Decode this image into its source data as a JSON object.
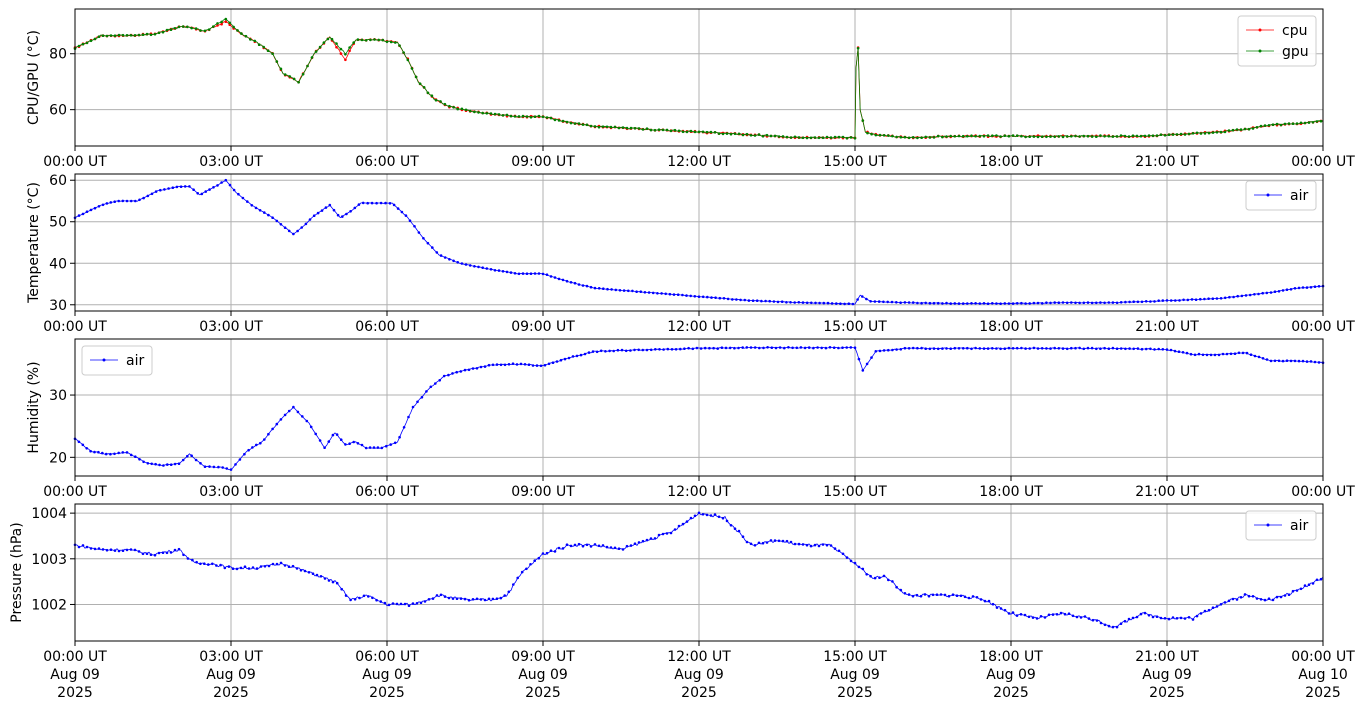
{
  "colors": {
    "cpu": "#ff0000",
    "gpu": "#008000",
    "air": "#0000ff",
    "grid": "#b0b0b0"
  },
  "chart_data": [
    {
      "type": "scatter",
      "ylabel": "CPU/GPU (°C)",
      "ylim": [
        47,
        96
      ],
      "yticks": [
        60,
        80
      ],
      "xlim": [
        0,
        24
      ],
      "xticks": [
        0,
        3,
        6,
        9,
        12,
        15,
        18,
        21,
        24
      ],
      "xticklabels": [
        "00:00 UT",
        "03:00 UT",
        "06:00 UT",
        "09:00 UT",
        "12:00 UT",
        "15:00 UT",
        "18:00 UT",
        "21:00 UT",
        "00:00 UT"
      ],
      "grid": true,
      "legend": "top-right",
      "series": [
        {
          "name": "cpu",
          "color": "#ff0000",
          "x": [
            0,
            0.5,
            1,
            1.5,
            2,
            2.2,
            2.5,
            2.9,
            3.2,
            3.5,
            3.8,
            4.0,
            4.3,
            4.6,
            4.9,
            5.2,
            5.4,
            5.8,
            6.2,
            6.4,
            6.6,
            6.9,
            7.2,
            7.6,
            8,
            8.5,
            9,
            9.5,
            10,
            10.5,
            11,
            11.5,
            12,
            12.5,
            13,
            13.5,
            14,
            14.5,
            15,
            15.02,
            15.06,
            15.1,
            15.2,
            15.4,
            16,
            17,
            18,
            19,
            20,
            20.5,
            21,
            21.5,
            22,
            22.5,
            23,
            23.5,
            24
          ],
          "y": [
            82,
            86.5,
            86.5,
            87,
            89.5,
            89.5,
            88,
            91.5,
            87,
            84,
            80,
            73,
            70,
            80,
            86,
            78,
            85,
            85,
            84,
            78,
            70,
            64,
            61,
            59.5,
            58.5,
            57.5,
            57.5,
            55.5,
            54,
            53.5,
            53,
            52.5,
            52,
            51.5,
            51,
            50.5,
            50,
            50,
            50,
            75,
            82,
            60,
            52,
            51,
            50,
            50.5,
            50.5,
            50.5,
            50.5,
            50.5,
            51,
            51.5,
            52,
            53,
            54.5,
            55,
            56
          ]
        },
        {
          "name": "gpu",
          "color": "#008000",
          "x": [
            0,
            0.5,
            1,
            1.5,
            2,
            2.2,
            2.5,
            2.9,
            3.2,
            3.5,
            3.8,
            4.0,
            4.3,
            4.6,
            4.9,
            5.2,
            5.4,
            5.8,
            6.2,
            6.4,
            6.6,
            6.9,
            7.2,
            7.6,
            8,
            8.5,
            9,
            9.5,
            10,
            10.5,
            11,
            11.5,
            12,
            12.5,
            13,
            13.5,
            14,
            14.5,
            15,
            15.02,
            15.06,
            15.1,
            15.2,
            15.4,
            16,
            17,
            18,
            19,
            20,
            20.5,
            21,
            21.5,
            22,
            22.5,
            23,
            23.5,
            24
          ],
          "y": [
            82,
            86.5,
            86.5,
            87,
            89.5,
            89.5,
            88,
            92.5,
            87,
            84,
            80,
            73,
            70,
            80,
            86,
            80,
            85,
            85,
            84,
            78,
            70,
            64,
            61,
            59.5,
            58.5,
            57.5,
            57.5,
            55.5,
            54,
            53.5,
            53,
            52.5,
            52,
            51.5,
            51,
            50.5,
            50,
            50,
            50,
            75,
            82,
            60,
            52,
            51,
            50,
            50.5,
            50.5,
            50.5,
            50.5,
            50.5,
            51,
            51.5,
            52,
            53,
            54.5,
            55,
            56
          ]
        }
      ]
    },
    {
      "type": "scatter",
      "ylabel": "Temperature (°C)",
      "ylim": [
        28.5,
        61.5
      ],
      "yticks": [
        30,
        40,
        50,
        60
      ],
      "xlim": [
        0,
        24
      ],
      "xticks": [
        0,
        3,
        6,
        9,
        12,
        15,
        18,
        21,
        24
      ],
      "xticklabels": [
        "00:00 UT",
        "03:00 UT",
        "06:00 UT",
        "09:00 UT",
        "12:00 UT",
        "15:00 UT",
        "18:00 UT",
        "21:00 UT",
        "00:00 UT"
      ],
      "grid": true,
      "legend": "top-right",
      "series": [
        {
          "name": "air",
          "color": "#0000ff",
          "x": [
            0,
            0.5,
            0.8,
            1.2,
            1.6,
            2.0,
            2.2,
            2.4,
            2.7,
            2.9,
            3.1,
            3.4,
            3.8,
            4.2,
            4.4,
            4.6,
            4.9,
            5.1,
            5.3,
            5.5,
            5.8,
            6.1,
            6.4,
            6.7,
            7.0,
            7.4,
            8,
            8.5,
            9,
            9.5,
            10,
            11,
            12,
            13,
            14,
            15,
            15.1,
            15.3,
            16,
            17,
            18,
            19,
            20,
            21,
            22,
            23,
            23.5,
            24
          ],
          "y": [
            51,
            54,
            55,
            55,
            57.5,
            58.5,
            58.5,
            56.5,
            58.5,
            60,
            57,
            54,
            51,
            47,
            49,
            51.5,
            54,
            51,
            52.5,
            54.5,
            54.5,
            54.5,
            51,
            46,
            42,
            40,
            38.5,
            37.5,
            37.5,
            35.5,
            34,
            33,
            32,
            31,
            30.5,
            30.2,
            32.3,
            30.8,
            30.5,
            30.3,
            30.3,
            30.5,
            30.5,
            31,
            31.5,
            33,
            34,
            34.5
          ]
        }
      ]
    },
    {
      "type": "scatter",
      "ylabel": "Humidity (%)",
      "ylim": [
        17,
        39
      ],
      "yticks": [
        20,
        30
      ],
      "xlim": [
        0,
        24
      ],
      "xticks": [
        0,
        3,
        6,
        9,
        12,
        15,
        18,
        21,
        24
      ],
      "xticklabels": [
        "00:00 UT",
        "03:00 UT",
        "06:00 UT",
        "09:00 UT",
        "12:00 UT",
        "15:00 UT",
        "18:00 UT",
        "21:00 UT",
        "00:00 UT"
      ],
      "grid": true,
      "legend": "top-left",
      "series": [
        {
          "name": "air",
          "color": "#0000ff",
          "x": [
            0,
            0.3,
            0.6,
            1.0,
            1.4,
            1.7,
            2.0,
            2.2,
            2.5,
            2.8,
            3.0,
            3.3,
            3.6,
            4.0,
            4.2,
            4.5,
            4.8,
            5.0,
            5.2,
            5.4,
            5.6,
            5.9,
            6.2,
            6.5,
            6.8,
            7.1,
            7.5,
            8,
            8.5,
            9,
            9.5,
            10,
            11,
            12,
            13,
            14,
            15,
            15.15,
            15.4,
            16,
            17,
            18,
            19,
            20,
            21,
            21.5,
            22,
            22.5,
            23,
            23.5,
            24
          ],
          "y": [
            23,
            21,
            20.5,
            20.8,
            19,
            18.7,
            19,
            20.5,
            18.5,
            18.4,
            18,
            21,
            22.5,
            26.5,
            28,
            25.5,
            21.5,
            24,
            22,
            22.5,
            21.5,
            21.5,
            22.5,
            28,
            31,
            33,
            34,
            34.8,
            35,
            34.7,
            36,
            37,
            37.3,
            37.5,
            37.6,
            37.6,
            37.6,
            34,
            37,
            37.5,
            37.5,
            37.5,
            37.5,
            37.5,
            37.3,
            36.5,
            36.5,
            36.8,
            35.5,
            35.5,
            35.2
          ]
        }
      ]
    },
    {
      "type": "scatter",
      "ylabel": "Pressure (hPa)",
      "ylim": [
        1001.2,
        1004.2
      ],
      "yticks": [
        1002,
        1003,
        1004
      ],
      "xlim": [
        0,
        24
      ],
      "xticks": [
        0,
        3,
        6,
        9,
        12,
        15,
        18,
        21,
        24
      ],
      "xticklabels": [
        "00:00 UT",
        "03:00 UT",
        "06:00 UT",
        "09:00 UT",
        "12:00 UT",
        "15:00 UT",
        "18:00 UT",
        "21:00 UT",
        "00:00 UT"
      ],
      "xticklabels2": [
        "Aug 09",
        "Aug 09",
        "Aug 09",
        "Aug 09",
        "Aug 09",
        "Aug 09",
        "Aug 09",
        "Aug 09",
        "Aug 10"
      ],
      "xticklabels3": [
        "2025",
        "2025",
        "2025",
        "2025",
        "2025",
        "2025",
        "2025",
        "2025",
        "2025"
      ],
      "grid": true,
      "legend": "top-right",
      "series": [
        {
          "name": "air",
          "color": "#0000ff",
          "x": [
            0,
            0.5,
            1,
            1.5,
            2,
            2.3,
            2.6,
            3,
            3.5,
            4,
            4.5,
            5,
            5.3,
            5.6,
            6,
            6.5,
            7,
            7.5,
            8,
            8.3,
            8.6,
            9,
            9.5,
            10,
            10.5,
            11,
            11.5,
            12,
            12.5,
            13,
            13.5,
            14,
            14.5,
            15,
            15.3,
            15.6,
            16,
            16.5,
            17,
            17.5,
            18,
            18.5,
            19,
            19.5,
            20,
            20.5,
            21,
            21.5,
            22,
            22.5,
            23,
            23.5,
            24
          ],
          "y": [
            1003.3,
            1003.2,
            1003.2,
            1003.1,
            1003.2,
            1002.9,
            1002.9,
            1002.8,
            1002.8,
            1002.9,
            1002.7,
            1002.5,
            1002.1,
            1002.2,
            1002.0,
            1002.0,
            1002.2,
            1002.1,
            1002.1,
            1002.2,
            1002.7,
            1003.1,
            1003.3,
            1003.3,
            1003.2,
            1003.4,
            1003.6,
            1004.0,
            1003.9,
            1003.3,
            1003.4,
            1003.3,
            1003.3,
            1002.9,
            1002.6,
            1002.6,
            1002.2,
            1002.2,
            1002.2,
            1002.1,
            1001.8,
            1001.7,
            1001.8,
            1001.7,
            1001.5,
            1001.8,
            1001.7,
            1001.7,
            1002.0,
            1002.2,
            1002.1,
            1002.3,
            1002.6
          ]
        }
      ]
    }
  ]
}
